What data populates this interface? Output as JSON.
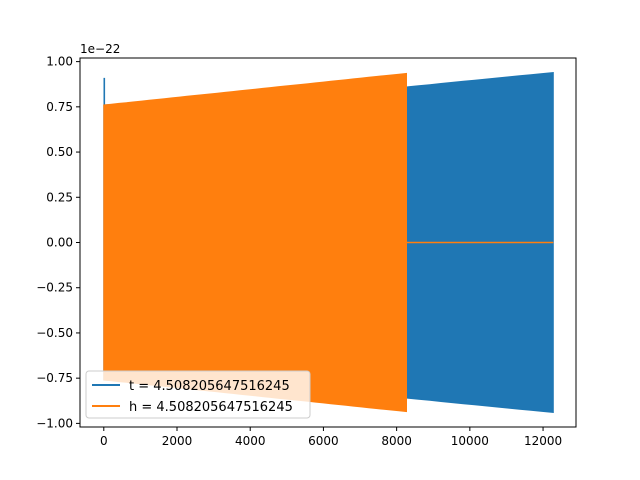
{
  "chart_data": {
    "type": "area",
    "title": "",
    "xlabel": "",
    "ylabel": "",
    "y_offset_label": "1e−22",
    "xlim": [
      -650,
      12900
    ],
    "ylim": [
      -1.02,
      1.02
    ],
    "xticks": [
      0,
      2000,
      4000,
      6000,
      8000,
      10000,
      12000
    ],
    "xtick_labels": [
      "0",
      "2000",
      "4000",
      "6000",
      "8000",
      "10000",
      "12000"
    ],
    "yticks": [
      1.0,
      0.75,
      0.5,
      0.25,
      0.0,
      -0.25,
      -0.5,
      -0.75,
      -1.0
    ],
    "ytick_labels": [
      "1.00",
      "0.75",
      "0.50",
      "0.25",
      "0.00",
      "−0.25",
      "−0.50",
      "−0.75",
      "−1.00"
    ],
    "grid": false,
    "legend_position": "lower-left",
    "series": [
      {
        "name": "t = 4.508205647516245",
        "color": "#1f77b4",
        "x_range": [
          0,
          12280
        ],
        "envelope_x": [
          0,
          8270,
          12280
        ],
        "envelope_upper": [
          0.76,
          0.86,
          0.94
        ],
        "envelope_lower": [
          -0.76,
          -0.86,
          -0.94
        ],
        "initial_spike": 0.91
      },
      {
        "name": "h = 4.508205647516245",
        "color": "#ff7f0e",
        "x_range": [
          0,
          8270
        ],
        "envelope_x": [
          0,
          8270
        ],
        "envelope_upper": [
          0.76,
          0.935
        ],
        "envelope_lower": [
          -0.76,
          -0.935
        ],
        "zero_after": [
          8270,
          12280
        ]
      }
    ]
  }
}
